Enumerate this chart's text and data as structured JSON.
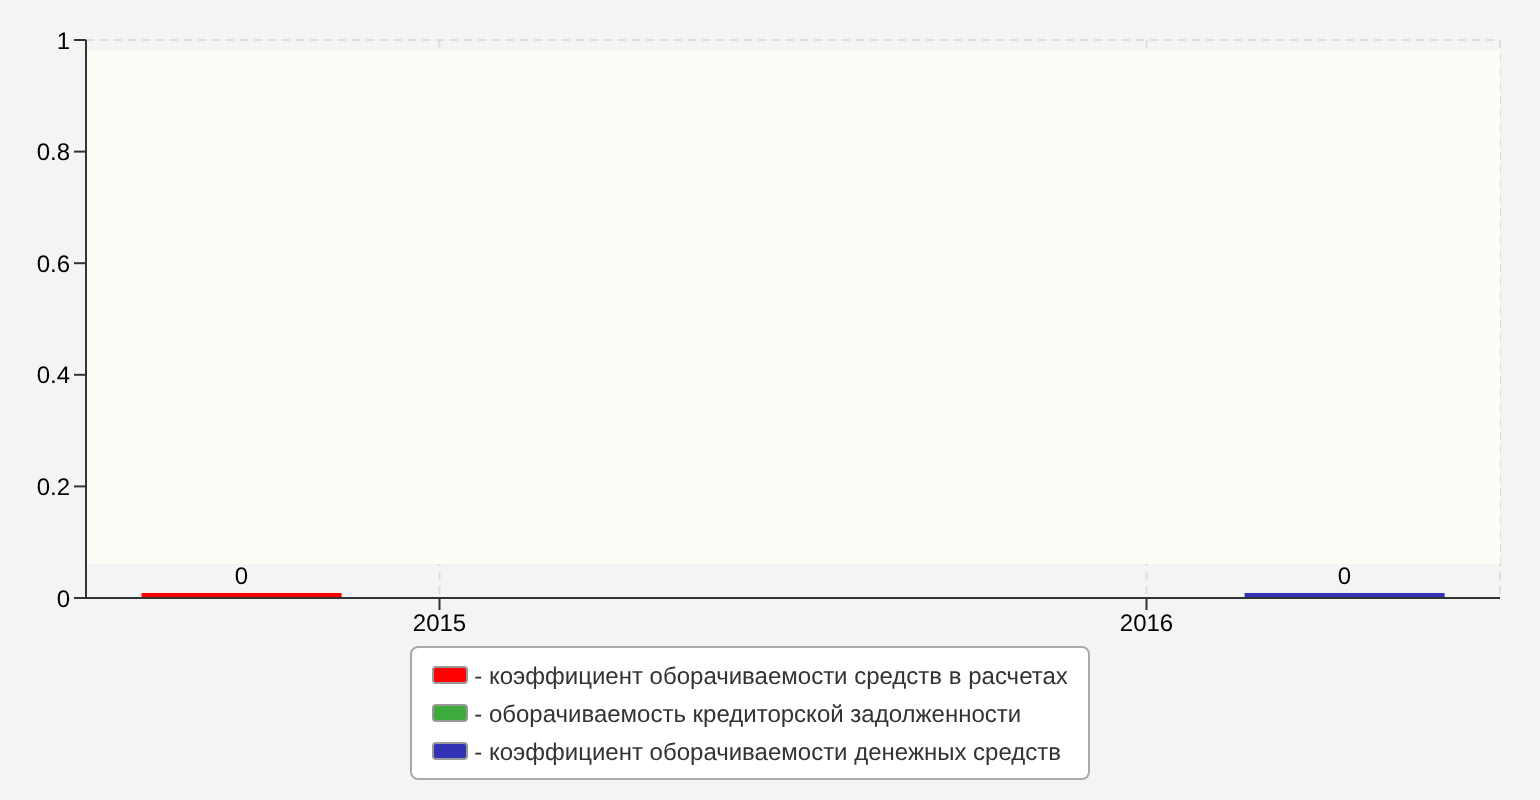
{
  "chart_data": {
    "type": "bar",
    "categories": [
      "2015",
      "2016"
    ],
    "series": [
      {
        "name": "- коэффициент оборачиваемости средств в расчетах",
        "color": "#ff0000",
        "values": [
          0,
          null
        ]
      },
      {
        "name": "- оборачиваемость кредиторской задолженности",
        "color": "#3cab3c",
        "values": [
          null,
          null
        ]
      },
      {
        "name": "- коэффициент оборачиваемости денежных средств",
        "color": "#3232b4",
        "values": [
          null,
          0
        ]
      }
    ],
    "ylim": [
      0,
      1
    ],
    "yticks": [
      0,
      0.2,
      0.4,
      0.6,
      0.8,
      1
    ],
    "grid": true,
    "legend": "bottom",
    "data_labels": true
  }
}
